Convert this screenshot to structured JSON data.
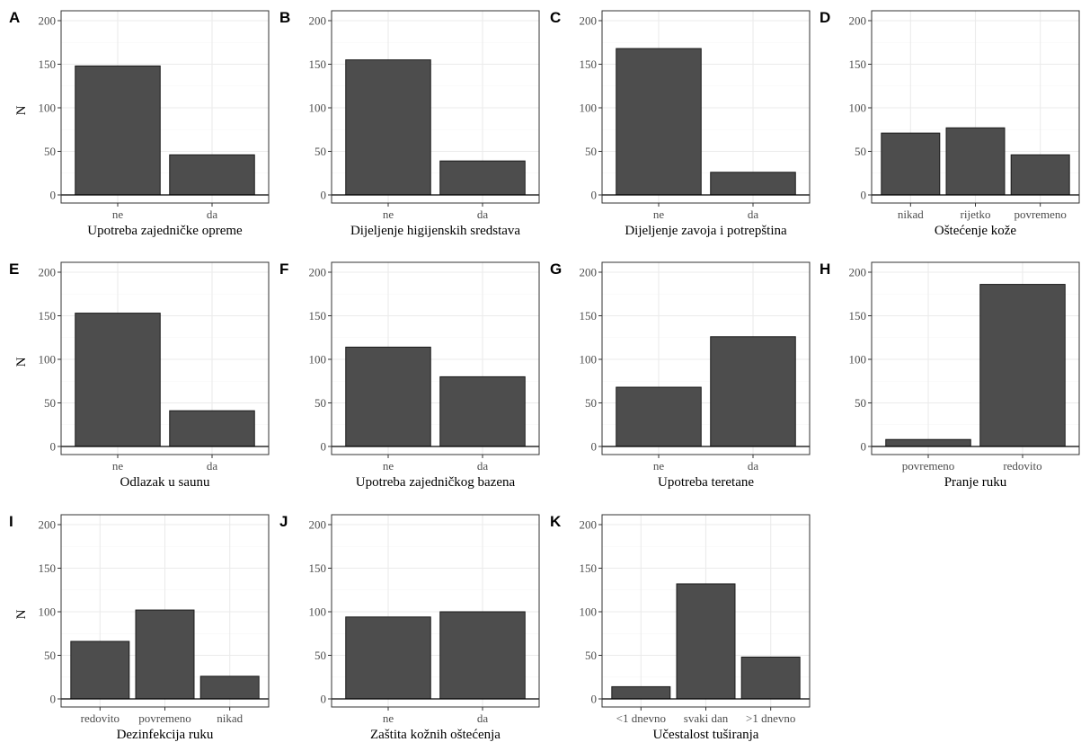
{
  "chart_data": [
    {
      "panel": "A",
      "type": "bar",
      "categories": [
        "ne",
        "da"
      ],
      "values": [
        148,
        46
      ],
      "xlabel": "Upotreba zajedničke opreme",
      "ylabel": "N",
      "ylim": [
        0,
        200
      ],
      "yticks": [
        0,
        50,
        100,
        150,
        200
      ]
    },
    {
      "panel": "B",
      "type": "bar",
      "categories": [
        "ne",
        "da"
      ],
      "values": [
        155,
        39
      ],
      "xlabel": "Dijeljenje higijenskih sredstava",
      "ylabel": "",
      "ylim": [
        0,
        200
      ],
      "yticks": [
        0,
        50,
        100,
        150,
        200
      ]
    },
    {
      "panel": "C",
      "type": "bar",
      "categories": [
        "ne",
        "da"
      ],
      "values": [
        168,
        26
      ],
      "xlabel": "Dijeljenje zavoja i potrepština",
      "ylabel": "",
      "ylim": [
        0,
        200
      ],
      "yticks": [
        0,
        50,
        100,
        150,
        200
      ]
    },
    {
      "panel": "D",
      "type": "bar",
      "categories": [
        "nikad",
        "rijetko",
        "povremeno"
      ],
      "values": [
        71,
        77,
        46
      ],
      "xlabel": "Oštećenje kože",
      "ylabel": "",
      "ylim": [
        0,
        200
      ],
      "yticks": [
        0,
        50,
        100,
        150,
        200
      ]
    },
    {
      "panel": "E",
      "type": "bar",
      "categories": [
        "ne",
        "da"
      ],
      "values": [
        153,
        41
      ],
      "xlabel": "Odlazak u saunu",
      "ylabel": "N",
      "ylim": [
        0,
        200
      ],
      "yticks": [
        0,
        50,
        100,
        150,
        200
      ]
    },
    {
      "panel": "F",
      "type": "bar",
      "categories": [
        "ne",
        "da"
      ],
      "values": [
        114,
        80
      ],
      "xlabel": "Upotreba zajedničkog bazena",
      "ylabel": "",
      "ylim": [
        0,
        200
      ],
      "yticks": [
        0,
        50,
        100,
        150,
        200
      ]
    },
    {
      "panel": "G",
      "type": "bar",
      "categories": [
        "ne",
        "da"
      ],
      "values": [
        68,
        126
      ],
      "xlabel": "Upotreba teretane",
      "ylabel": "",
      "ylim": [
        0,
        200
      ],
      "yticks": [
        0,
        50,
        100,
        150,
        200
      ]
    },
    {
      "panel": "H",
      "type": "bar",
      "categories": [
        "povremeno",
        "redovito"
      ],
      "values": [
        8,
        186
      ],
      "xlabel": "Pranje ruku",
      "ylabel": "",
      "ylim": [
        0,
        200
      ],
      "yticks": [
        0,
        50,
        100,
        150,
        200
      ]
    },
    {
      "panel": "I",
      "type": "bar",
      "categories": [
        "redovito",
        "povremeno",
        "nikad"
      ],
      "values": [
        66,
        102,
        26
      ],
      "xlabel": "Dezinfekcija ruku",
      "ylabel": "N",
      "ylim": [
        0,
        200
      ],
      "yticks": [
        0,
        50,
        100,
        150,
        200
      ]
    },
    {
      "panel": "J",
      "type": "bar",
      "categories": [
        "ne",
        "da"
      ],
      "values": [
        94,
        100
      ],
      "xlabel": "Zaštita kožnih oštećenja",
      "ylabel": "",
      "ylim": [
        0,
        200
      ],
      "yticks": [
        0,
        50,
        100,
        150,
        200
      ]
    },
    {
      "panel": "K",
      "type": "bar",
      "categories": [
        "<1 dnevno",
        "svaki dan",
        ">1 dnevno"
      ],
      "values": [
        14,
        132,
        48
      ],
      "xlabel": "Učestalost tuširanja",
      "ylabel": "",
      "ylim": [
        0,
        200
      ],
      "yticks": [
        0,
        50,
        100,
        150,
        200
      ]
    }
  ]
}
